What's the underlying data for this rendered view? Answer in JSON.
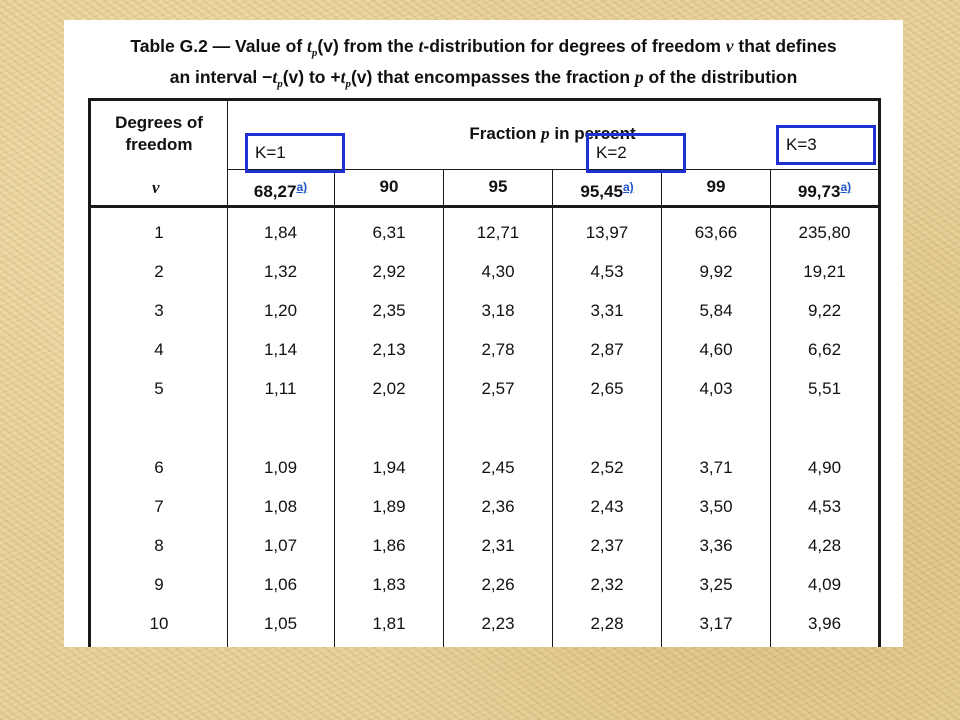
{
  "title": {
    "line1": {
      "prefix": "Table G.2 — Value of ",
      "t": "t",
      "p": "p",
      "v": "(v)",
      "mid": " from the ",
      "t2": "t",
      "rest": "-distribution for degrees of freedom ",
      "nu": "v",
      "end": " that defines"
    },
    "line2": {
      "a": "an interval −",
      "t": "t",
      "p": "p",
      "v": "(v) to +",
      "t2": "t",
      "p2": "p",
      "v2": "(v)",
      "end": " that encompasses the fraction ",
      "pp": "p",
      "tail": " of the distribution"
    }
  },
  "header": {
    "dof_line1": "Degrees of",
    "dof_line2": "freedom",
    "nu": "v",
    "fraction_prefix": "Fraction ",
    "fraction_p": "p",
    "fraction_suffix": " in percent",
    "footnote_mark": "a)",
    "columns": [
      "68,27",
      "90",
      "95",
      "95,45",
      "99",
      "99,73"
    ],
    "columns_with_footnote": [
      true,
      false,
      false,
      true,
      false,
      true
    ]
  },
  "rows": [
    {
      "nu": "1",
      "values": [
        "1,84",
        "6,31",
        "12,71",
        "13,97",
        "63,66",
        "235,80"
      ]
    },
    {
      "nu": "2",
      "values": [
        "1,32",
        "2,92",
        "4,30",
        "4,53",
        "9,92",
        "19,21"
      ]
    },
    {
      "nu": "3",
      "values": [
        "1,20",
        "2,35",
        "3,18",
        "3,31",
        "5,84",
        "9,22"
      ]
    },
    {
      "nu": "4",
      "values": [
        "1,14",
        "2,13",
        "2,78",
        "2,87",
        "4,60",
        "6,62"
      ]
    },
    {
      "nu": "5",
      "values": [
        "1,11",
        "2,02",
        "2,57",
        "2,65",
        "4,03",
        "5,51"
      ]
    },
    {
      "nu": "6",
      "values": [
        "1,09",
        "1,94",
        "2,45",
        "2,52",
        "3,71",
        "4,90"
      ]
    },
    {
      "nu": "7",
      "values": [
        "1,08",
        "1,89",
        "2,36",
        "2,43",
        "3,50",
        "4,53"
      ]
    },
    {
      "nu": "8",
      "values": [
        "1,07",
        "1,86",
        "2,31",
        "2,37",
        "3,36",
        "4,28"
      ]
    },
    {
      "nu": "9",
      "values": [
        "1,06",
        "1,83",
        "2,26",
        "2,32",
        "3,25",
        "4,09"
      ]
    },
    {
      "nu": "10",
      "values": [
        "1,05",
        "1,81",
        "2,23",
        "2,28",
        "3,17",
        "3,96"
      ]
    }
  ],
  "annotations": [
    "K=1",
    "K=2",
    "K=3"
  ],
  "colors": {
    "annotation_border": "#1f2fd0",
    "footnote_link": "#2255cc",
    "background": "#e6cf95"
  }
}
